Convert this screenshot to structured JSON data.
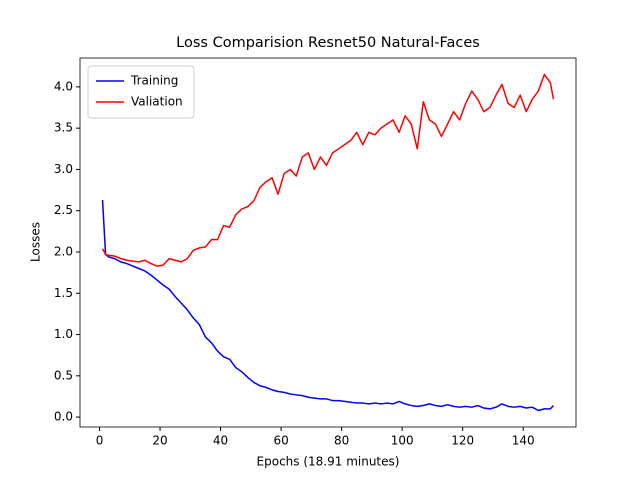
{
  "chart_data": {
    "type": "line",
    "title": "Loss Comparision Resnet50 Natural-Faces",
    "xlabel": "Epochs (18.91 minutes)",
    "ylabel": "Losses",
    "x": [
      1,
      2,
      3,
      5,
      7,
      9,
      11,
      13,
      15,
      17,
      19,
      21,
      23,
      25,
      27,
      29,
      31,
      33,
      35,
      37,
      39,
      41,
      43,
      45,
      47,
      49,
      51,
      53,
      55,
      57,
      59,
      61,
      63,
      65,
      67,
      69,
      71,
      73,
      75,
      77,
      79,
      81,
      83,
      85,
      87,
      89,
      91,
      93,
      95,
      97,
      99,
      101,
      103,
      105,
      107,
      109,
      111,
      113,
      115,
      117,
      119,
      121,
      123,
      125,
      127,
      129,
      131,
      133,
      135,
      137,
      139,
      141,
      143,
      145,
      147,
      149,
      150
    ],
    "series": [
      {
        "name": "Training",
        "color": "#0000ff",
        "values": [
          2.63,
          1.97,
          1.94,
          1.92,
          1.88,
          1.86,
          1.83,
          1.8,
          1.77,
          1.72,
          1.66,
          1.6,
          1.55,
          1.46,
          1.38,
          1.3,
          1.2,
          1.12,
          0.97,
          0.9,
          0.8,
          0.73,
          0.7,
          0.6,
          0.55,
          0.48,
          0.42,
          0.38,
          0.36,
          0.33,
          0.31,
          0.3,
          0.28,
          0.27,
          0.26,
          0.24,
          0.23,
          0.22,
          0.22,
          0.2,
          0.2,
          0.19,
          0.18,
          0.17,
          0.17,
          0.16,
          0.17,
          0.16,
          0.17,
          0.16,
          0.19,
          0.16,
          0.14,
          0.13,
          0.14,
          0.16,
          0.14,
          0.13,
          0.15,
          0.13,
          0.12,
          0.13,
          0.12,
          0.14,
          0.11,
          0.1,
          0.12,
          0.16,
          0.13,
          0.12,
          0.13,
          0.11,
          0.12,
          0.08,
          0.1,
          0.1,
          0.14
        ]
      },
      {
        "name": "Valiation",
        "color": "#ff0000",
        "values": [
          2.04,
          1.97,
          1.96,
          1.95,
          1.92,
          1.9,
          1.89,
          1.88,
          1.9,
          1.86,
          1.83,
          1.84,
          1.92,
          1.9,
          1.88,
          1.92,
          2.02,
          2.05,
          2.06,
          2.15,
          2.15,
          2.32,
          2.3,
          2.45,
          2.52,
          2.55,
          2.62,
          2.78,
          2.85,
          2.9,
          2.7,
          2.95,
          3.0,
          2.92,
          3.15,
          3.2,
          3.0,
          3.15,
          3.05,
          3.2,
          3.25,
          3.3,
          3.35,
          3.45,
          3.3,
          3.45,
          3.42,
          3.5,
          3.55,
          3.6,
          3.45,
          3.65,
          3.55,
          3.25,
          3.82,
          3.6,
          3.55,
          3.4,
          3.55,
          3.7,
          3.6,
          3.8,
          3.95,
          3.85,
          3.7,
          3.75,
          3.9,
          4.03,
          3.8,
          3.75,
          3.9,
          3.7,
          3.85,
          3.95,
          4.15,
          4.05,
          3.85
        ]
      }
    ],
    "xlim": [
      -6.45,
      157.45
    ],
    "ylim": [
      -0.12,
      4.35
    ],
    "xticks": [
      0,
      20,
      40,
      60,
      80,
      100,
      120,
      140
    ],
    "yticks": [
      {
        "value": 0,
        "label": "0.0"
      },
      {
        "value": 0.5,
        "label": "0.5"
      },
      {
        "value": 1,
        "label": "1.0"
      },
      {
        "value": 1.5,
        "label": "1.5"
      },
      {
        "value": 2,
        "label": "2.0"
      },
      {
        "value": 2.5,
        "label": "2.5"
      },
      {
        "value": 3,
        "label": "3.0"
      },
      {
        "value": 3.5,
        "label": "3.5"
      },
      {
        "value": 4,
        "label": "4.0"
      }
    ],
    "legend": "upper left",
    "grid": false
  }
}
